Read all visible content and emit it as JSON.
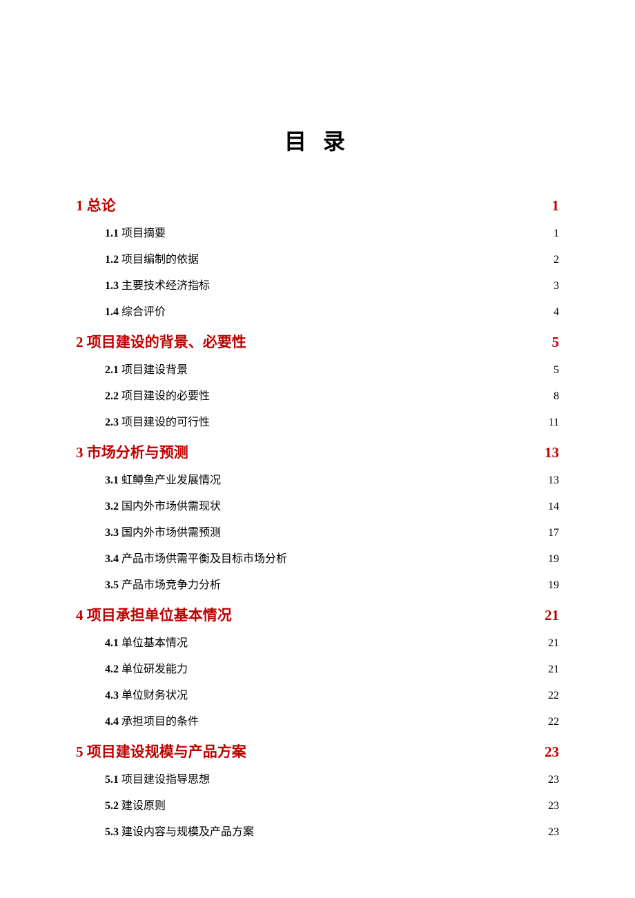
{
  "title": "目 录",
  "colors": {
    "l1": "#c00000",
    "l2": "#000000",
    "background": "#ffffff"
  },
  "sections": [
    {
      "num": "1",
      "title": "总论",
      "page": "1",
      "items": [
        {
          "num": "1.1",
          "title": "项目摘要",
          "page": "1"
        },
        {
          "num": "1.2",
          "title": "项目编制的依据",
          "page": "2"
        },
        {
          "num": "1.3",
          "title": "主要技术经济指标",
          "page": "3"
        },
        {
          "num": "1.4",
          "title": "综合评价",
          "page": "4"
        }
      ]
    },
    {
      "num": "2",
      "title": "项目建设的背景、必要性",
      "page": "5",
      "items": [
        {
          "num": "2.1",
          "title": "项目建设背景",
          "page": "5"
        },
        {
          "num": "2.2",
          "title": "项目建设的必要性",
          "page": "8"
        },
        {
          "num": "2.3",
          "title": "项目建设的可行性",
          "page": "11"
        }
      ]
    },
    {
      "num": "3",
      "title": "市场分析与预测",
      "page": "13",
      "items": [
        {
          "num": "3.1",
          "title": "虹鳟鱼产业发展情况",
          "page": "13"
        },
        {
          "num": "3.2",
          "title": "国内外市场供需现状",
          "page": "14"
        },
        {
          "num": "3.3",
          "title": "国内外市场供需预测",
          "page": "17"
        },
        {
          "num": "3.4",
          "title": "产品市场供需平衡及目标市场分析",
          "page": "19"
        },
        {
          "num": "3.5",
          "title": "产品市场竞争力分析",
          "page": "19"
        }
      ]
    },
    {
      "num": "4",
      "title": "项目承担单位基本情况",
      "page": "21",
      "items": [
        {
          "num": "4.1",
          "title": "单位基本情况",
          "page": "21"
        },
        {
          "num": "4.2",
          "title": "单位研发能力",
          "page": "21"
        },
        {
          "num": "4.3",
          "title": "单位财务状况",
          "page": "22"
        },
        {
          "num": "4.4",
          "title": "承担项目的条件",
          "page": "22"
        }
      ]
    },
    {
      "num": "5",
      "title": "项目建设规模与产品方案",
      "page": "23",
      "items": [
        {
          "num": "5.1",
          "title": "项目建设指导思想",
          "page": "23"
        },
        {
          "num": "5.2",
          "title": "建设原则",
          "page": "23"
        },
        {
          "num": "5.3",
          "title": "建设内容与规模及产品方案",
          "page": "23"
        }
      ]
    }
  ]
}
